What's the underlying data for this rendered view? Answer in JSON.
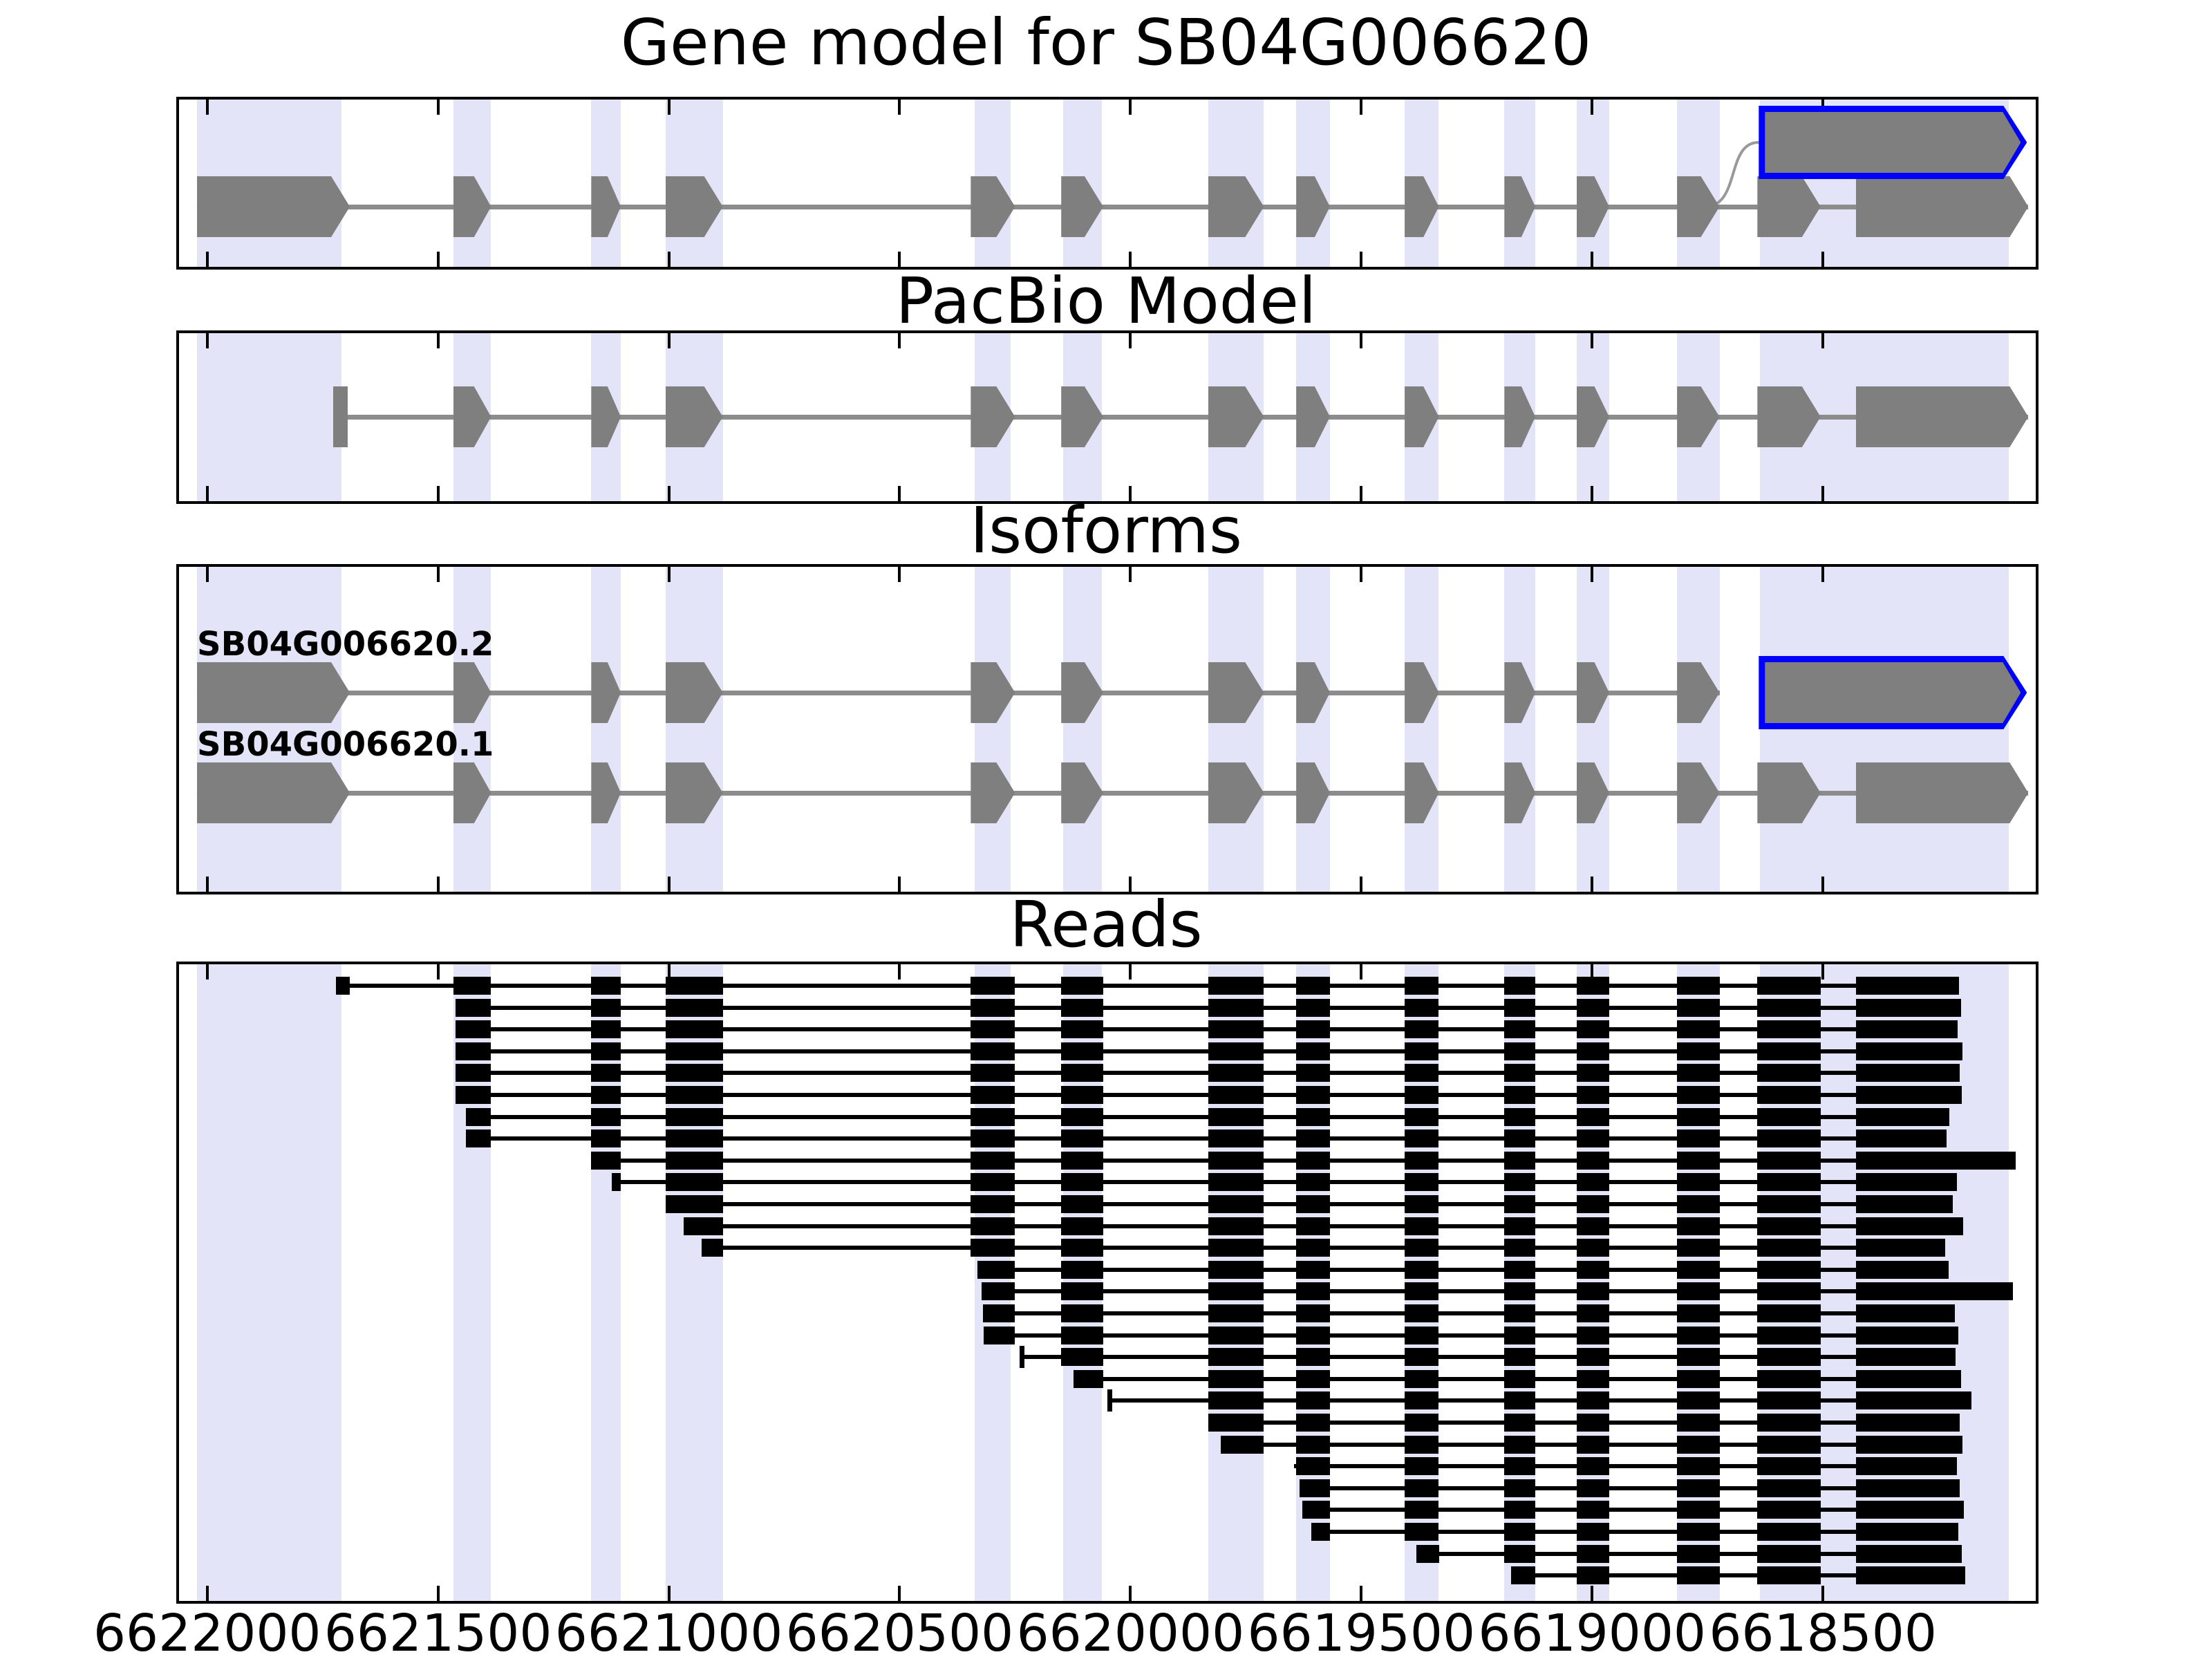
{
  "chart_data": {
    "type": "genomic-gene-model-tracks",
    "gene_id": "SB04G006620",
    "titles": {
      "gene_model": "Gene model for SB04G006620",
      "pacbio": "PacBio Model",
      "isoforms": "Isoforms",
      "reads": "Reads"
    },
    "axis": {
      "xlim_left": 6622061,
      "xlim_right": 6618051,
      "orientation": "decreasing",
      "ticks": [
        6622000,
        6621500,
        6621000,
        6620500,
        6620000,
        6619500,
        6619000,
        6618500
      ],
      "tick_labels": [
        "6622000",
        "6621500",
        "6621000",
        "6620500",
        "6620000",
        "6619500",
        "6619000",
        "6618500"
      ]
    },
    "colors": {
      "exon_fill": "#7f7f7f",
      "intron_line": "#8c8c8c",
      "highlight_outline": "#0000ff",
      "exon_band": "#e4e4f8",
      "read": "#000000",
      "background": "#ffffff"
    },
    "highlight_bands": [
      [
        6622022,
        6621709
      ],
      [
        6621467,
        6621385
      ],
      [
        6621168,
        6621104
      ],
      [
        6621007,
        6620883
      ],
      [
        6620337,
        6620260
      ],
      [
        6620146,
        6620062
      ],
      [
        6619832,
        6619711
      ],
      [
        6619641,
        6619568
      ],
      [
        6619406,
        6619332
      ],
      [
        6619190,
        6619123
      ],
      [
        6619034,
        6618963
      ],
      [
        6618816,
        6618724
      ],
      [
        6618636,
        6618097
      ]
    ],
    "exons_union": [
      [
        6622022,
        6621691
      ],
      [
        6621467,
        6621385
      ],
      [
        6621168,
        6621104
      ],
      [
        6621007,
        6620883
      ],
      [
        6620346,
        6620250
      ],
      [
        6620150,
        6620059
      ],
      [
        6619832,
        6619711
      ],
      [
        6619641,
        6619568
      ],
      [
        6619406,
        6619332
      ],
      [
        6619190,
        6619123
      ],
      [
        6619034,
        6618963
      ],
      [
        6618816,
        6618724
      ],
      [
        6618642,
        6618505
      ],
      [
        6618429,
        6618055
      ]
    ],
    "tracks": {
      "gene_model": {
        "exon_indices": [
          0,
          1,
          2,
          3,
          4,
          5,
          6,
          7,
          8,
          9,
          10,
          11,
          12,
          13
        ],
        "highlight_exon": {
          "start": 6618639,
          "end": 6618058,
          "position": "above"
        }
      },
      "pacbio": {
        "start_bar": {
          "start": 6621727,
          "end": 6621695
        },
        "exon_indices": [
          1,
          2,
          3,
          4,
          5,
          6,
          7,
          8,
          9,
          10,
          11,
          12,
          13
        ]
      },
      "isoforms": [
        {
          "label": "SB04G006620.2",
          "exon_indices": [
            0,
            1,
            2,
            3,
            4,
            5,
            6,
            7,
            8,
            9,
            10,
            11
          ],
          "highlight_exon": {
            "start": 6618639,
            "end": 6618058,
            "position": "inline"
          }
        },
        {
          "label": "SB04G006620.1",
          "exon_indices": [
            0,
            1,
            2,
            3,
            4,
            5,
            6,
            7,
            8,
            9,
            10,
            11,
            12,
            13
          ]
        }
      ]
    },
    "reads": [
      {
        "start": 6621721,
        "end": 6618205,
        "start_style": "block"
      },
      {
        "start": 6621462,
        "end": 6618200,
        "start_style": "block"
      },
      {
        "start": 6621462,
        "end": 6618208,
        "start_style": "block"
      },
      {
        "start": 6621462,
        "end": 6618197,
        "start_style": "block"
      },
      {
        "start": 6621462,
        "end": 6618203,
        "start_style": "block"
      },
      {
        "start": 6621462,
        "end": 6618199,
        "start_style": "block"
      },
      {
        "start": 6621440,
        "end": 6618226,
        "start_style": "block"
      },
      {
        "start": 6621440,
        "end": 6618232,
        "start_style": "block"
      },
      {
        "start": 6621168,
        "end": 6618082,
        "start_style": "block"
      },
      {
        "start": 6621123,
        "end": 6618210,
        "start_style": "block"
      },
      {
        "start": 6621007,
        "end": 6618218,
        "start_style": "block"
      },
      {
        "start": 6620968,
        "end": 6618196,
        "start_style": "block"
      },
      {
        "start": 6620929,
        "end": 6618235,
        "start_style": "block"
      },
      {
        "start": 6620332,
        "end": 6618228,
        "start_style": "block"
      },
      {
        "start": 6620322,
        "end": 6618088,
        "start_style": "block"
      },
      {
        "start": 6620320,
        "end": 6618214,
        "start_style": "block"
      },
      {
        "start": 6620318,
        "end": 6618206,
        "start_style": "block"
      },
      {
        "start": 6620235,
        "end": 6618212,
        "start_style": "tick"
      },
      {
        "start": 6620124,
        "end": 6618201,
        "start_style": "block"
      },
      {
        "start": 6620045,
        "end": 6618178,
        "start_style": "tick"
      },
      {
        "start": 6619832,
        "end": 6618204,
        "start_style": "block"
      },
      {
        "start": 6619805,
        "end": 6618198,
        "start_style": "block"
      },
      {
        "start": 6619645,
        "end": 6618209,
        "start_style": "block"
      },
      {
        "start": 6619633,
        "end": 6618203,
        "start_style": "block"
      },
      {
        "start": 6619627,
        "end": 6618194,
        "start_style": "block"
      },
      {
        "start": 6619609,
        "end": 6618207,
        "start_style": "block"
      },
      {
        "start": 6619380,
        "end": 6618199,
        "start_style": "block"
      },
      {
        "start": 6619175,
        "end": 6618192,
        "start_style": "block"
      }
    ]
  }
}
